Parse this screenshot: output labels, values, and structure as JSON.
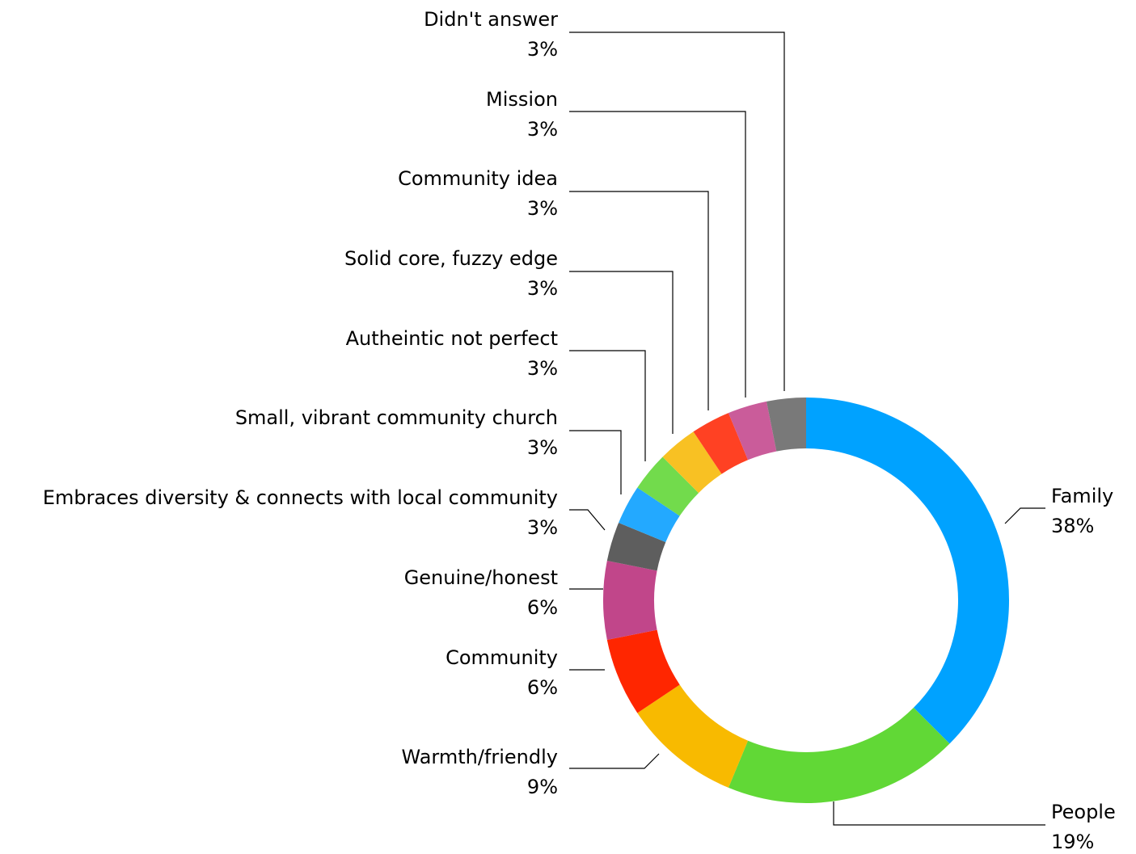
{
  "chart_data": {
    "type": "pie",
    "donut": true,
    "title": "",
    "slices": [
      {
        "label": "Family",
        "percent_label": "38%",
        "value": 37.5,
        "color": "#00A2FF"
      },
      {
        "label": "People",
        "percent_label": "19%",
        "value": 18.75,
        "color": "#61D836"
      },
      {
        "label": "Warmth/friendly",
        "percent_label": "9%",
        "value": 9.375,
        "color": "#F8BA00"
      },
      {
        "label": "Community",
        "percent_label": "6%",
        "value": 6.25,
        "color": "#FF2600"
      },
      {
        "label": "Genuine/honest",
        "percent_label": "6%",
        "value": 6.25,
        "color": "#C1468A"
      },
      {
        "label": "Embraces diversity & connects with local community",
        "percent_label": "3%",
        "value": 3.125,
        "color": "#5E5E5E"
      },
      {
        "label": "Small, vibrant community church",
        "percent_label": "3%",
        "value": 3.125,
        "color": "#23A9FF"
      },
      {
        "label": "Autheintic not perfect",
        "percent_label": "3%",
        "value": 3.125,
        "color": "#72DB4C"
      },
      {
        "label": "Solid core, fuzzy edge",
        "percent_label": "3%",
        "value": 3.125,
        "color": "#F8C123"
      },
      {
        "label": "Community idea",
        "percent_label": "3%",
        "value": 3.125,
        "color": "#FF4123"
      },
      {
        "label": "Mission",
        "percent_label": "3%",
        "value": 3.125,
        "color": "#CA5C9A"
      },
      {
        "label": "Didn't answer",
        "percent_label": "3%",
        "value": 3.125,
        "color": "#797979"
      }
    ]
  }
}
